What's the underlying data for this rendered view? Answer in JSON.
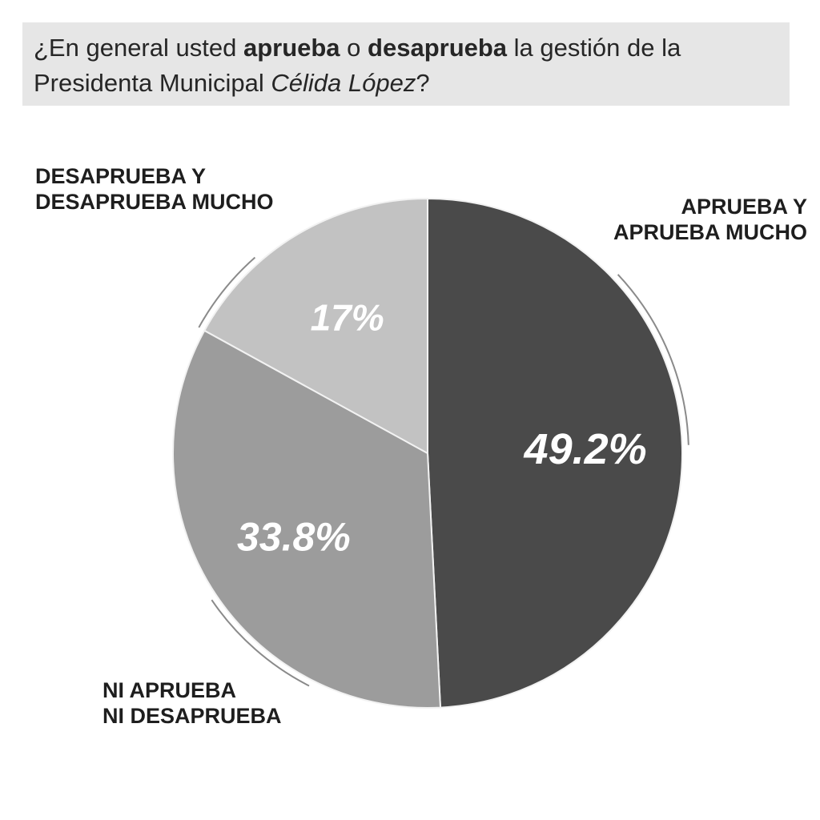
{
  "question": {
    "prefix": "¿En general usted ",
    "bold1": "aprueba",
    "middle": " o ",
    "bold2": "desaprueba",
    "suffix1": " la gestión de la Presidenta Municipal ",
    "italic": "Célida López",
    "suffix2": "?"
  },
  "chart_data": {
    "type": "pie",
    "title": "¿En general usted aprueba o desaprueba la gestión de la Presidenta Municipal Célida López?",
    "slices": [
      {
        "label": "APRUEBA Y\nAPRUEBA MUCHO",
        "value": 49.2,
        "value_label": "49.2%",
        "color": "#4a4a4a"
      },
      {
        "label": "NI APRUEBA\nNI DESAPRUEBA",
        "value": 33.8,
        "value_label": "33.8%",
        "color": "#9c9c9c"
      },
      {
        "label": "DESAPRUEBA Y\nDESAPRUEBA MUCHO",
        "value": 17,
        "value_label": "17%",
        "color": "#c2c2c2"
      }
    ],
    "start": "12 o'clock",
    "direction": "clockwise",
    "value_label_color": "#ffffff",
    "legend": "none"
  }
}
